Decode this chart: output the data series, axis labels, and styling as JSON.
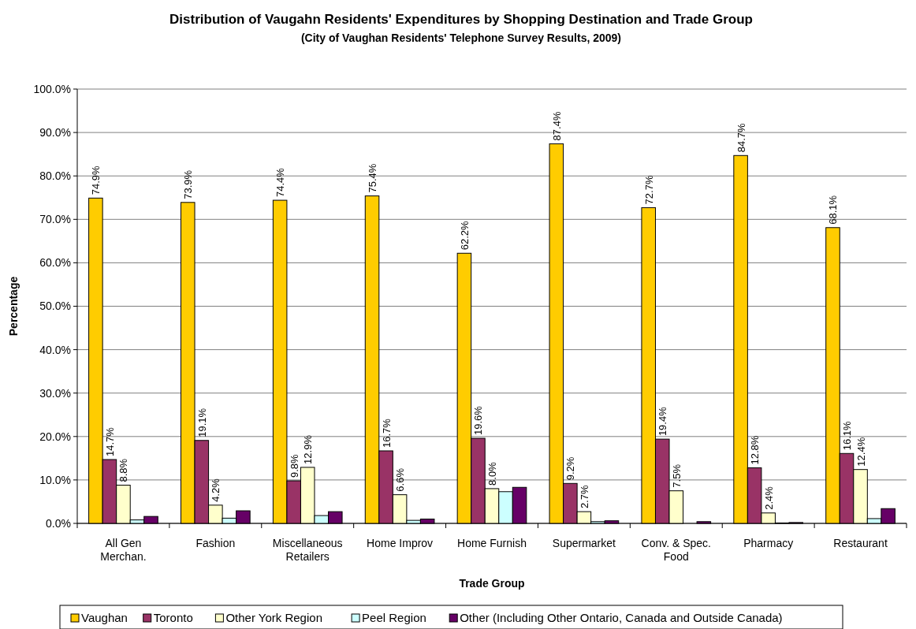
{
  "chart_data": {
    "type": "bar",
    "title": "Distribution of Vaugahn Residents' Expenditures by Shopping Destination and Trade Group",
    "subtitle": "(City of Vaughan Residents' Telephone Survey Results, 2009)",
    "xlabel": "Trade Group",
    "ylabel": "Percentage",
    "categories": [
      "All Gen Merchan.",
      "Fashion",
      "Miscellaneous Retailers",
      "Home Improv",
      "Home Furnish",
      "Supermarket",
      "Conv. & Spec. Food",
      "Pharmacy",
      "Restaurant"
    ],
    "series": [
      {
        "name": "Vaughan",
        "color": "#ffcc00",
        "values": [
          74.9,
          73.9,
          74.4,
          75.4,
          62.2,
          87.4,
          72.7,
          84.7,
          68.1
        ],
        "value_labels": [
          "74.9%",
          "73.9%",
          "74.4%",
          "75.4%",
          "62.2%",
          "87.4%",
          "72.7%",
          "84.7%",
          "68.1%"
        ]
      },
      {
        "name": "Toronto",
        "color": "#993366",
        "values": [
          14.7,
          19.1,
          9.8,
          16.7,
          19.6,
          9.2,
          19.4,
          12.8,
          16.1
        ],
        "value_labels": [
          "14.7%",
          "19.1%",
          "9.8%",
          "16.7%",
          "19.6%",
          "9.2%",
          "19.4%",
          "12.8%",
          "16.1%"
        ]
      },
      {
        "name": "Other York Region",
        "color": "#ffffcc",
        "values": [
          8.8,
          4.2,
          12.9,
          6.6,
          8.0,
          2.7,
          7.5,
          2.4,
          12.4
        ],
        "value_labels": [
          "8.8%",
          "4.2%",
          "12.9%",
          "6.6%",
          "8.0%",
          "2.7%",
          "7.5%",
          "2.4%",
          "12.4%"
        ]
      },
      {
        "name": "Peel Region",
        "color": "#ccffff",
        "values": [
          0.8,
          1.2,
          1.8,
          0.7,
          7.3,
          0.4,
          0,
          0.1,
          1.1
        ]
      },
      {
        "name": "Other (Including Other Ontario, Canada and Outside Canada)",
        "color": "#660066",
        "values": [
          1.6,
          2.9,
          2.7,
          1.0,
          8.3,
          0.6,
          0.4,
          0.2,
          3.4
        ]
      }
    ],
    "ylim": [
      0,
      100
    ],
    "yticks": [
      {
        "value": 0,
        "label": "0.0%"
      },
      {
        "value": 10,
        "label": "10.0%"
      },
      {
        "value": 20,
        "label": "20.0%"
      },
      {
        "value": 30,
        "label": "30.0%"
      },
      {
        "value": 40,
        "label": "40.0%"
      },
      {
        "value": 50,
        "label": "50.0%"
      },
      {
        "value": 60,
        "label": "60.0%"
      },
      {
        "value": 70,
        "label": "70.0%"
      },
      {
        "value": 80,
        "label": "80.0%"
      },
      {
        "value": 90,
        "label": "90.0%"
      },
      {
        "value": 100,
        "label": "100.0%"
      }
    ],
    "grid": "y",
    "legend": "bottom"
  }
}
